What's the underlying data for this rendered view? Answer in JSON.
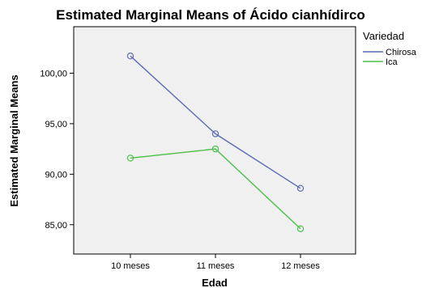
{
  "chart_data": {
    "type": "line",
    "title": "Estimated Marginal Means of Ácido cianhídirco",
    "xlabel": "Edad",
    "ylabel": "Estimated Marginal Means",
    "categories": [
      "10 meses",
      "11 meses",
      "12 meses"
    ],
    "yticks": [
      "85,00",
      "90,00",
      "95,00",
      "100,00"
    ],
    "ytick_values": [
      85,
      90,
      95,
      100
    ],
    "ylim": [
      82.1,
      104.6
    ],
    "grid": false,
    "legend": {
      "title": "Variedad",
      "placement": "right"
    },
    "series": [
      {
        "name": "Chirosa",
        "color": "#5e6bb6",
        "values": [
          101.7,
          94.0,
          88.6
        ]
      },
      {
        "name": "Ica",
        "color": "#4bbf4b",
        "values": [
          91.6,
          92.5,
          84.6
        ]
      }
    ]
  },
  "colors": {
    "plot_background": "#f0f0f0",
    "frame": "#000000"
  }
}
